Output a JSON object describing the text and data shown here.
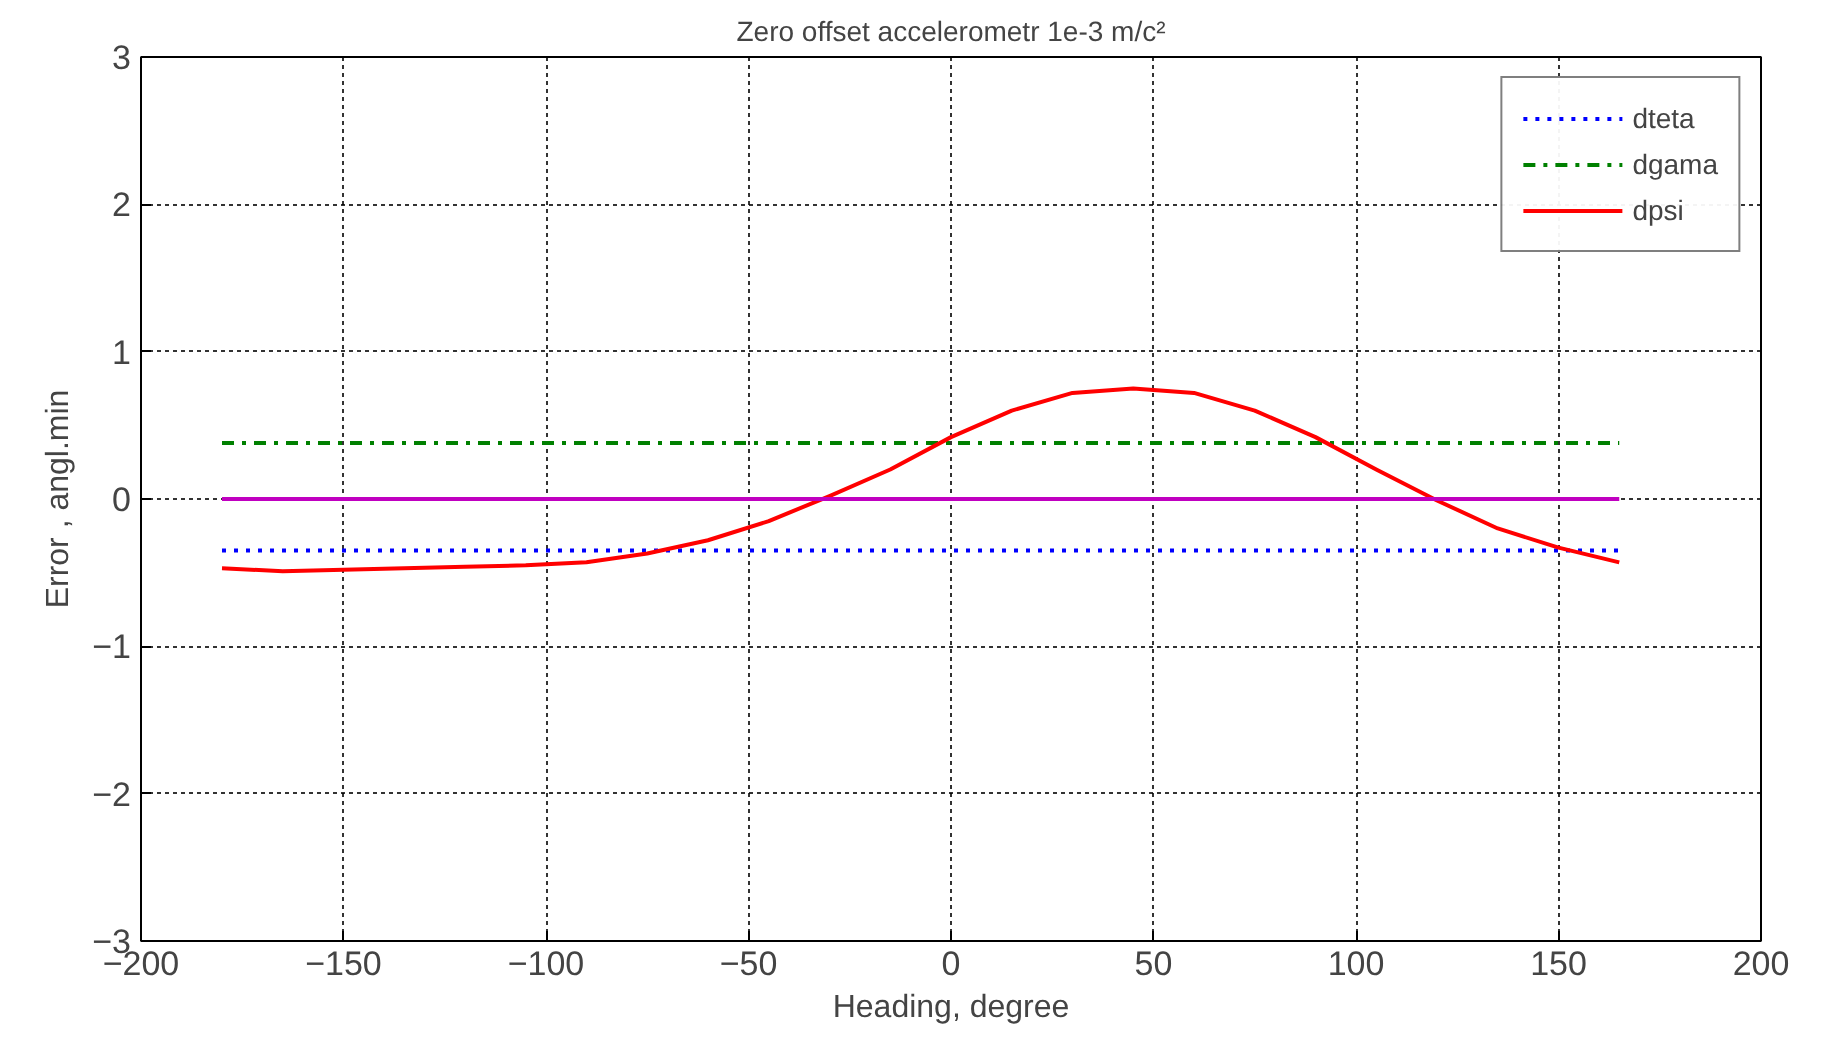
{
  "chart_data": {
    "type": "line",
    "title": "Zero offset accelerometr 1e-3 m/c²",
    "xlabel": "Heading, degree",
    "ylabel": "Error , angl.min",
    "x": [
      -180,
      -165,
      -150,
      -135,
      -120,
      -105,
      -90,
      -75,
      -60,
      -45,
      -30,
      -15,
      0,
      15,
      30,
      45,
      60,
      75,
      90,
      105,
      120,
      135,
      150,
      165
    ],
    "series": [
      {
        "name": "dteta",
        "color": "#0000ff",
        "line_style": "dotted",
        "values": [
          -0.35,
          -0.35,
          -0.35,
          -0.35,
          -0.35,
          -0.35,
          -0.35,
          -0.35,
          -0.35,
          -0.35,
          -0.35,
          -0.35,
          -0.35,
          -0.35,
          -0.35,
          -0.35,
          -0.35,
          -0.35,
          -0.35,
          -0.35,
          -0.35,
          -0.35,
          -0.35,
          -0.35
        ]
      },
      {
        "name": "dgama",
        "color": "#008000",
        "line_style": "dashdot",
        "values": [
          0.38,
          0.38,
          0.38,
          0.38,
          0.38,
          0.38,
          0.38,
          0.38,
          0.38,
          0.38,
          0.38,
          0.38,
          0.38,
          0.38,
          0.38,
          0.38,
          0.38,
          0.38,
          0.38,
          0.38,
          0.38,
          0.38,
          0.38,
          0.38
        ]
      },
      {
        "name": "dpsi",
        "color": "#ff0000",
        "line_style": "solid",
        "values": [
          -0.47,
          -0.49,
          -0.48,
          -0.47,
          -0.46,
          -0.45,
          -0.43,
          -0.37,
          -0.28,
          -0.15,
          0.02,
          0.2,
          0.42,
          0.6,
          0.72,
          0.75,
          0.72,
          0.6,
          0.42,
          0.2,
          -0.01,
          -0.2,
          -0.33,
          -0.43
        ]
      },
      {
        "color": "#c000c0",
        "line_style": "solid",
        "values": [
          0,
          0,
          0,
          0,
          0,
          0,
          0,
          0,
          0,
          0,
          0,
          0,
          0,
          0,
          0,
          0,
          0,
          0,
          0,
          0,
          0,
          0,
          0,
          0
        ]
      }
    ],
    "xlim": [
      -200,
      200
    ],
    "xticks": [
      -200,
      -150,
      -100,
      -50,
      0,
      50,
      100,
      150,
      200
    ],
    "ylim": [
      -3,
      3
    ],
    "yticks": [
      -3,
      -2,
      -1,
      0,
      1,
      2,
      3
    ],
    "grid": true,
    "legend": "top right",
    "marker": "none"
  }
}
